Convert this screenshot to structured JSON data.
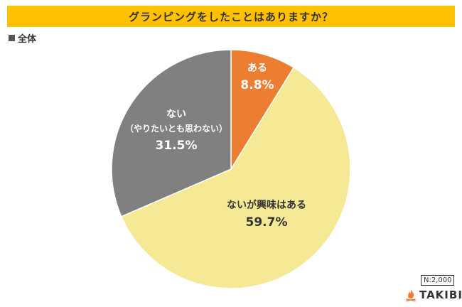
{
  "title": "グランピングをしたことはありますか？",
  "legend_label": "全体",
  "sample_note": "N:2,000",
  "brand": "TAKIBI",
  "icon": "campfire-icon",
  "colors": {
    "title_bg": "#ffc000",
    "aru": "#ed7d31",
    "interest": "#f5e996",
    "nai": "#808080"
  },
  "chart_data": {
    "type": "pie",
    "title": "グランピングをしたことはありますか？",
    "legend": [
      "全体"
    ],
    "slices": [
      {
        "label": "ある",
        "sublabel": "",
        "value": 8.8,
        "display": "8.8%",
        "color": "#ed7d31",
        "text_color": "#ffffff"
      },
      {
        "label": "ないが興味はある",
        "sublabel": "",
        "value": 59.7,
        "display": "59.7%",
        "color": "#f5e996",
        "text_color": "#333333"
      },
      {
        "label": "ない",
        "sublabel": "（やりたいとも思わない）",
        "value": 31.5,
        "display": "31.5%",
        "color": "#808080",
        "text_color": "#ffffff"
      }
    ]
  }
}
